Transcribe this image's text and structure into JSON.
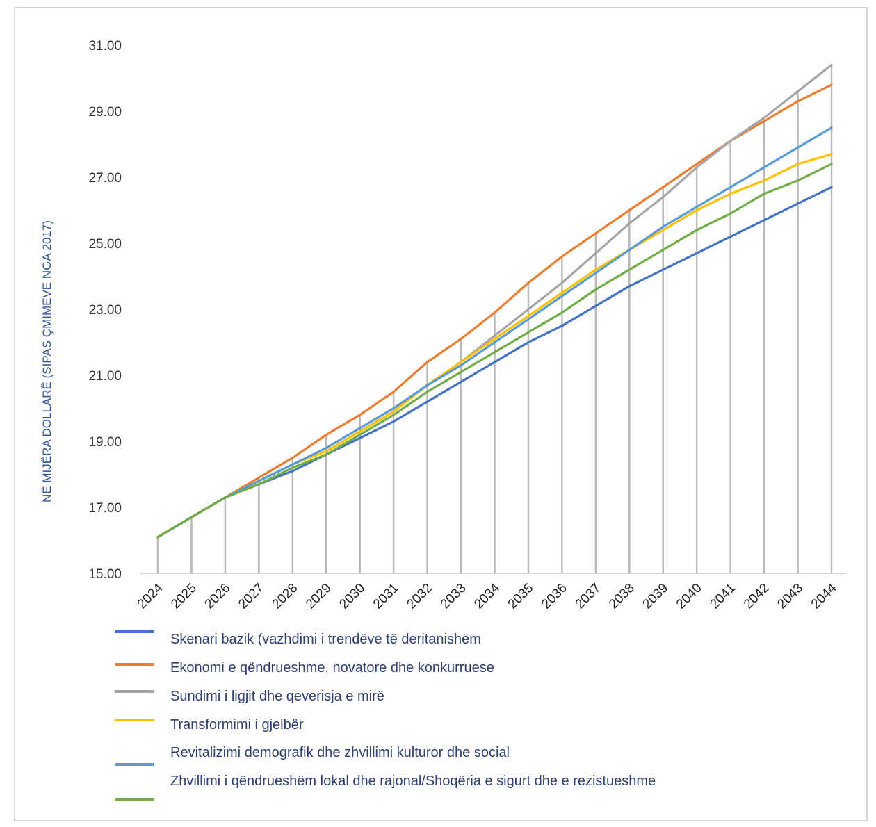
{
  "chart_data": {
    "type": "line",
    "title": "",
    "xlabel": "",
    "ylabel": "NË MIJËRA DOLLARË (SIPAS ÇMIMEVE NGA 2017)",
    "ylim": [
      15,
      31
    ],
    "yticks": [
      "15.00",
      "17.00",
      "19.00",
      "21.00",
      "23.00",
      "25.00",
      "27.00",
      "29.00",
      "31.00"
    ],
    "x": [
      "2024",
      "2025",
      "2026",
      "2027",
      "2028",
      "2029",
      "2030",
      "2031",
      "2032",
      "2033",
      "2034",
      "2035",
      "2036",
      "2037",
      "2038",
      "2039",
      "2040",
      "2041",
      "2042",
      "2043",
      "2044"
    ],
    "grid": "vertical",
    "legend_position": "bottom",
    "series": [
      {
        "name": "Skenari bazik (vazhdimi i trendëve të deritanishëm",
        "color": "#4472c4",
        "values": [
          16.1,
          16.7,
          17.3,
          17.7,
          18.1,
          18.6,
          19.1,
          19.6,
          20.2,
          20.8,
          21.4,
          22.0,
          22.5,
          23.1,
          23.7,
          24.2,
          24.7,
          25.2,
          25.7,
          26.2,
          26.7
        ]
      },
      {
        "name": "Ekonomi e qëndrueshme, novatore dhe konkurruese",
        "color": "#ed7d31",
        "values": [
          16.1,
          16.7,
          17.3,
          17.9,
          18.5,
          19.2,
          19.8,
          20.5,
          21.4,
          22.1,
          22.9,
          23.8,
          24.6,
          25.3,
          26.0,
          26.7,
          27.4,
          28.1,
          28.7,
          29.3,
          29.8
        ]
      },
      {
        "name": "Sundimi i ligjit dhe qeverisja e mirë",
        "color": "#a5a5a5",
        "values": [
          16.1,
          16.7,
          17.3,
          17.8,
          18.3,
          18.7,
          19.3,
          19.9,
          20.7,
          21.4,
          22.2,
          23.0,
          23.8,
          24.7,
          25.6,
          26.4,
          27.3,
          28.1,
          28.8,
          29.6,
          30.4
        ]
      },
      {
        "name": "Transformimi i gjelbër",
        "color": "#ffc000",
        "values": [
          16.1,
          16.7,
          17.3,
          17.8,
          18.3,
          18.7,
          19.3,
          19.9,
          20.7,
          21.4,
          22.1,
          22.8,
          23.5,
          24.2,
          24.8,
          25.4,
          26.0,
          26.5,
          26.9,
          27.4,
          27.7
        ]
      },
      {
        "name": "Revitalizimi demografik dhe zhvillimi kulturor dhe social",
        "color": "#5b9bd5",
        "values": [
          16.1,
          16.7,
          17.3,
          17.8,
          18.3,
          18.8,
          19.4,
          20.0,
          20.7,
          21.3,
          22.0,
          22.7,
          23.4,
          24.1,
          24.8,
          25.5,
          26.1,
          26.7,
          27.3,
          27.9,
          28.5
        ]
      },
      {
        "name": "Zhvillimi i qëndrueshëm lokal dhe rajonal/Shoqëria e sigurt dhe e rezistueshme",
        "color": "#70ad47",
        "values": [
          16.1,
          16.7,
          17.3,
          17.7,
          18.2,
          18.6,
          19.2,
          19.8,
          20.5,
          21.1,
          21.7,
          22.3,
          22.9,
          23.6,
          24.2,
          24.8,
          25.4,
          25.9,
          26.5,
          26.9,
          27.4
        ]
      }
    ]
  }
}
